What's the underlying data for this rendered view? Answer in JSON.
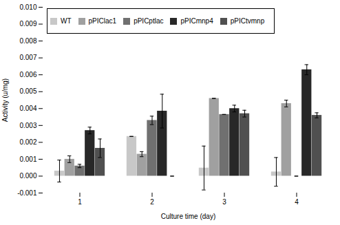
{
  "chart_data": {
    "type": "bar",
    "categories": [
      1,
      2,
      3,
      4
    ],
    "series": [
      {
        "name": "WT",
        "color": "#c8c8c8",
        "values": [
          0.0003,
          0.00235,
          0.00048,
          0.00025
        ],
        "errors": [
          0.00065,
          0.0,
          0.0013,
          0.00085
        ]
      },
      {
        "name": "pPIClac1",
        "color": "#a0a0a0",
        "values": [
          0.001,
          0.0013,
          0.0046,
          0.0043
        ],
        "errors": [
          0.0002,
          0.00015,
          0.0,
          0.0002
        ]
      },
      {
        "name": "pPICptlac",
        "color": "#707070",
        "values": [
          0.0006,
          0.0033,
          0.00365,
          0.0
        ],
        "errors": [
          0.0001,
          0.00025,
          0.0,
          0.0
        ]
      },
      {
        "name": "pPICmnp4",
        "color": "#282828",
        "values": [
          0.0027,
          0.00385,
          0.004,
          0.0063
        ],
        "errors": [
          0.0002,
          0.001,
          0.0002,
          0.0003
        ]
      },
      {
        "name": "pPICtvmnp",
        "color": "#505050",
        "values": [
          0.00165,
          0.0,
          0.0037,
          0.0036
        ],
        "errors": [
          0.00055,
          0.0,
          0.0002,
          0.00015
        ]
      }
    ],
    "xlabel": "Culture time (day)",
    "ylabel": "Activity (u/mg)",
    "ylim": [
      -0.001,
      0.01
    ],
    "yticks": [
      -0.001,
      {
        "value": 0,
        "label": "0.000"
      },
      0.001,
      0.002,
      0.003,
      0.004,
      0.005,
      0.006,
      0.007,
      0.008,
      0.009,
      {
        "value": 0.01,
        "label": "0.010"
      }
    ],
    "legend": "upper left",
    "grid": false
  }
}
